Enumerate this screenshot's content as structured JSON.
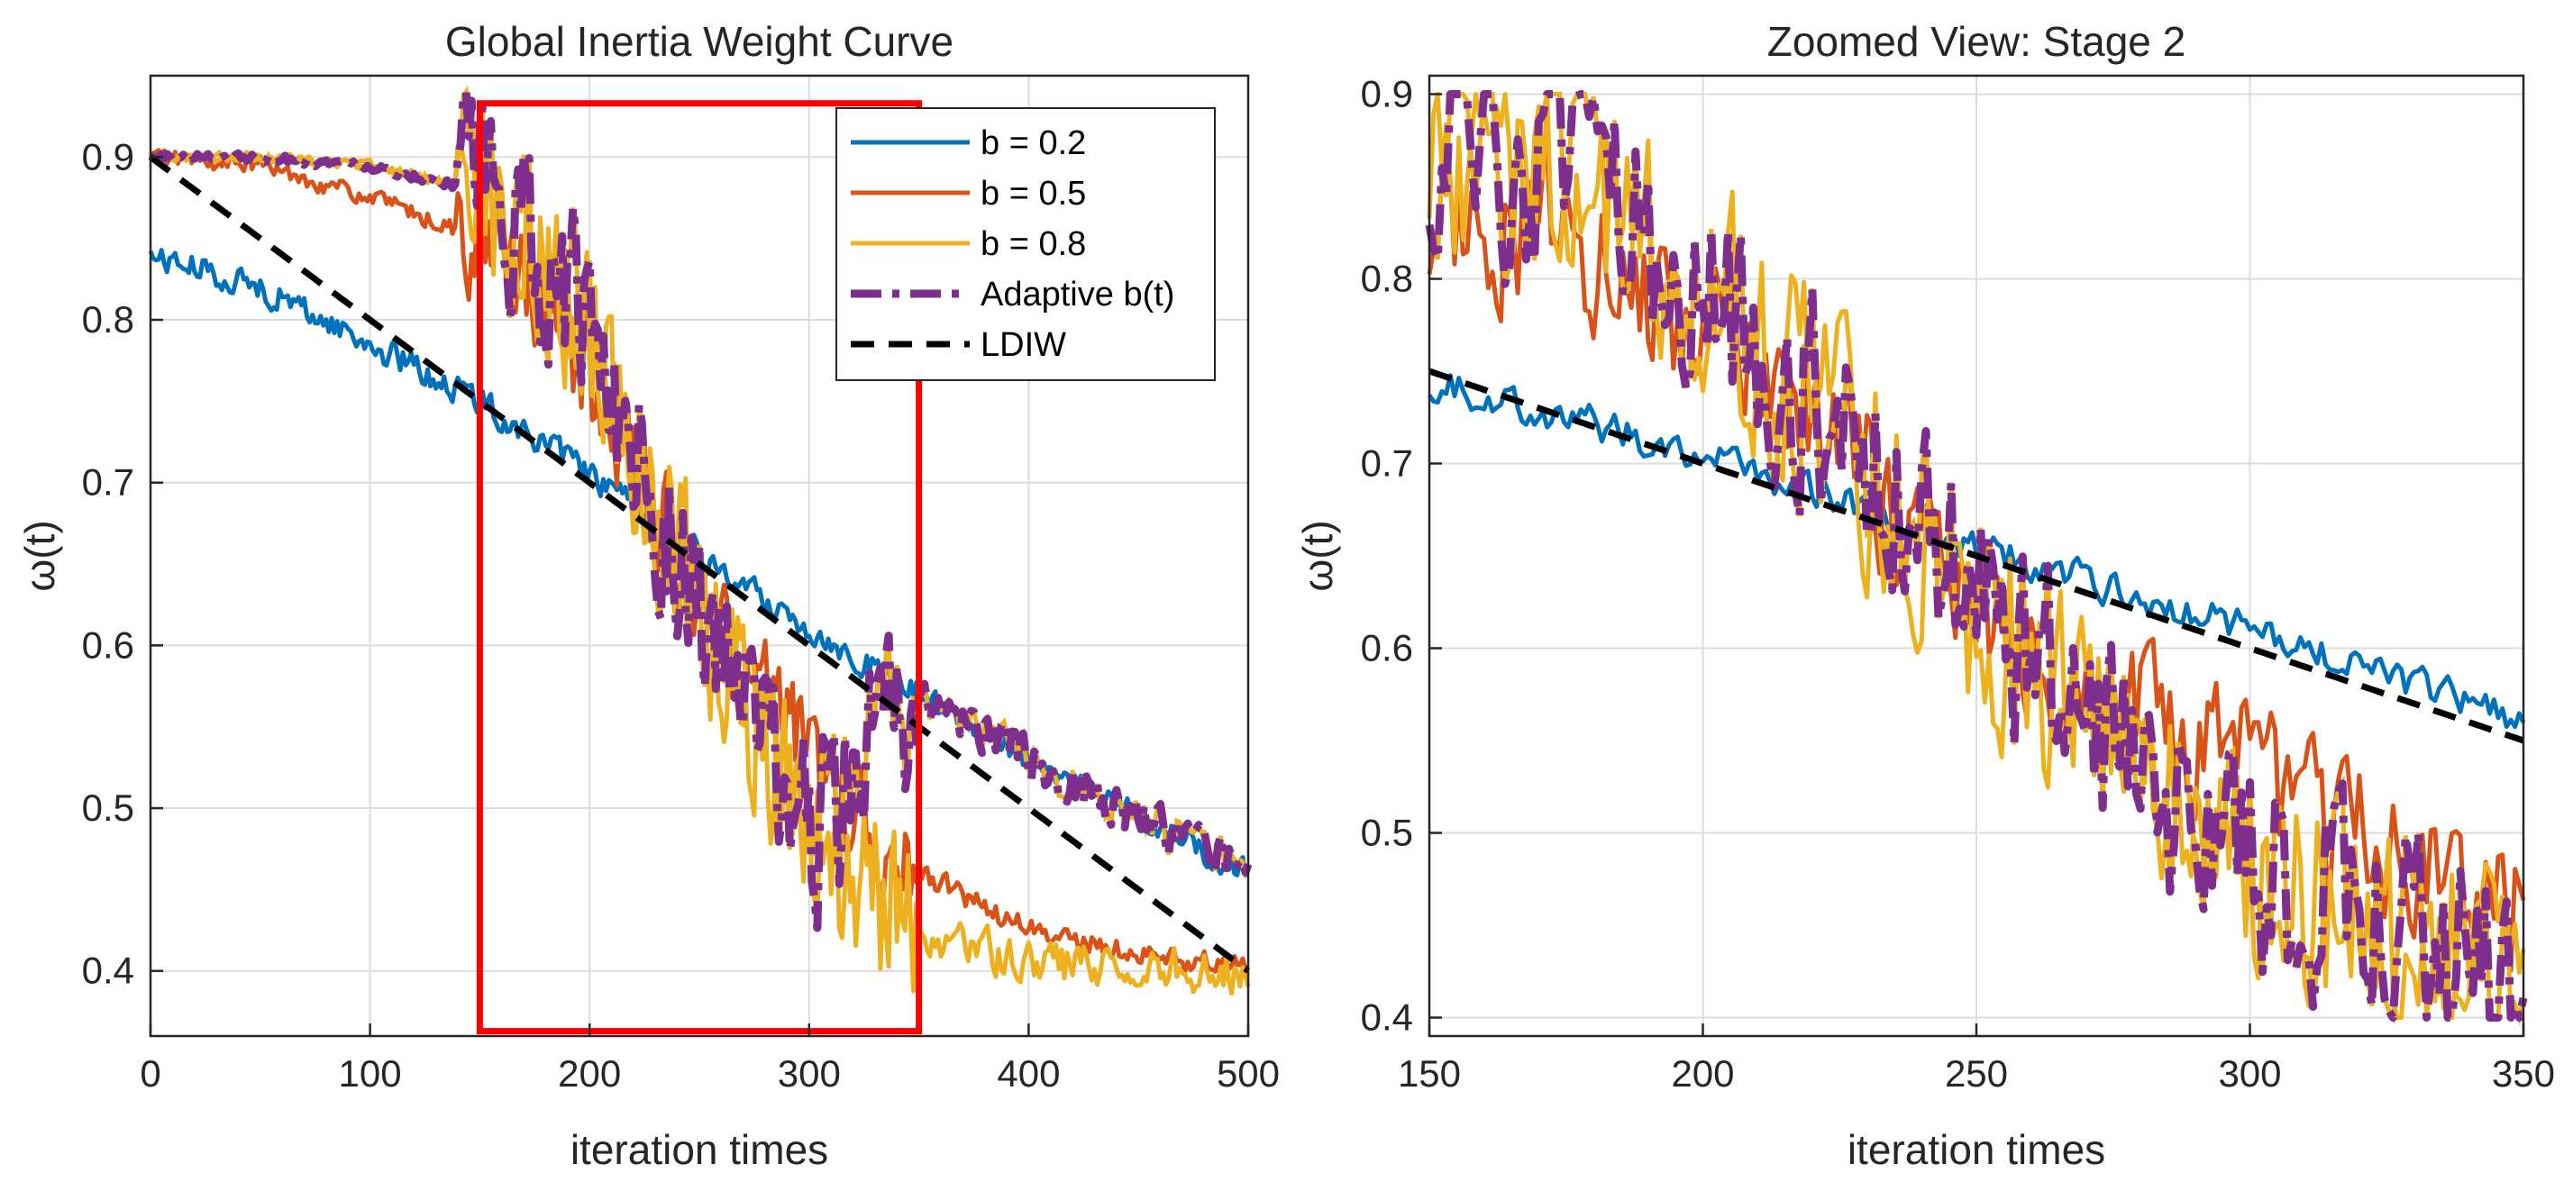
{
  "chart_data": [
    {
      "type": "line",
      "title": "Global Inertia Weight Curve",
      "xlabel": "iteration times",
      "ylabel": "ω(t)",
      "xlim": [
        0,
        500
      ],
      "ylim": [
        0.36,
        0.95
      ],
      "xticks": [
        0,
        100,
        200,
        300,
        400,
        500
      ],
      "yticks": [
        0.4,
        0.5,
        0.6,
        0.7,
        0.8,
        0.9
      ],
      "grid": true,
      "legend_position": "top-right",
      "highlight_box": {
        "x": [
          150,
          350
        ],
        "y": [
          0.363,
          0.933
        ],
        "color": "#ff0000"
      },
      "series": [
        {
          "name": "b = 0.2",
          "color": "#0072bd",
          "style": "solid",
          "points": [
            [
              0,
              0.84
            ],
            [
              50,
              0.82
            ],
            [
              100,
              0.785
            ],
            [
              150,
              0.75
            ],
            [
              200,
              0.705
            ],
            [
              250,
              0.655
            ],
            [
              300,
              0.61
            ],
            [
              350,
              0.57
            ],
            [
              400,
              0.53
            ],
            [
              450,
              0.495
            ],
            [
              500,
              0.46
            ]
          ]
        },
        {
          "name": "b = 0.5",
          "color": "#d95319",
          "style": "solid",
          "points": [
            [
              0,
              0.9
            ],
            [
              50,
              0.895
            ],
            [
              100,
              0.875
            ],
            [
              150,
              0.85
            ],
            [
              200,
              0.77
            ],
            [
              250,
              0.62
            ],
            [
              300,
              0.53
            ],
            [
              350,
              0.46
            ],
            [
              400,
              0.425
            ],
            [
              450,
              0.41
            ],
            [
              500,
              0.403
            ]
          ]
        },
        {
          "name": "b = 0.8",
          "color": "#edb120",
          "style": "solid",
          "points": [
            [
              0,
              0.9
            ],
            [
              50,
              0.9
            ],
            [
              100,
              0.895
            ],
            [
              150,
              0.88
            ],
            [
              200,
              0.8
            ],
            [
              250,
              0.62
            ],
            [
              300,
              0.48
            ],
            [
              350,
              0.425
            ],
            [
              400,
              0.405
            ],
            [
              450,
              0.401
            ],
            [
              500,
              0.4
            ]
          ]
        },
        {
          "name": "Adaptive b(t)",
          "color": "#7e2f8e",
          "style": "dashdot",
          "points": [
            [
              0,
              0.9
            ],
            [
              50,
              0.9
            ],
            [
              100,
              0.895
            ],
            [
              150,
              0.88
            ],
            [
              200,
              0.8
            ],
            [
              250,
              0.62
            ],
            [
              300,
              0.48
            ],
            [
              350,
              0.57
            ],
            [
              400,
              0.53
            ],
            [
              450,
              0.495
            ],
            [
              500,
              0.46
            ]
          ]
        },
        {
          "name": "LDIW",
          "color": "#000000",
          "style": "dashed",
          "points": [
            [
              0,
              0.9
            ],
            [
              500,
              0.4
            ]
          ]
        }
      ]
    },
    {
      "type": "line",
      "title": "Zoomed View: Stage 2",
      "xlabel": "iteration times",
      "ylabel": "ω(t)",
      "xlim": [
        150,
        350
      ],
      "ylim": [
        0.39,
        0.91
      ],
      "xticks": [
        150,
        200,
        250,
        300,
        350
      ],
      "yticks": [
        0.4,
        0.5,
        0.6,
        0.7,
        0.8,
        0.9
      ],
      "grid": true,
      "series": [
        {
          "name": "b = 0.2",
          "color": "#0072bd",
          "style": "solid",
          "points": [
            [
              150,
              0.745
            ],
            [
              175,
              0.725
            ],
            [
              200,
              0.705
            ],
            [
              225,
              0.68
            ],
            [
              250,
              0.655
            ],
            [
              275,
              0.632
            ],
            [
              300,
              0.61
            ],
            [
              325,
              0.585
            ],
            [
              350,
              0.56
            ]
          ]
        },
        {
          "name": "b = 0.5",
          "color": "#d95319",
          "style": "solid",
          "points": [
            [
              150,
              0.835
            ],
            [
              175,
              0.82
            ],
            [
              200,
              0.77
            ],
            [
              225,
              0.71
            ],
            [
              250,
              0.62
            ],
            [
              275,
              0.57
            ],
            [
              300,
              0.53
            ],
            [
              325,
              0.49
            ],
            [
              350,
              0.455
            ]
          ]
        },
        {
          "name": "b = 0.8",
          "color": "#edb120",
          "style": "solid",
          "points": [
            [
              150,
              0.88
            ],
            [
              175,
              0.855
            ],
            [
              200,
              0.8
            ],
            [
              225,
              0.72
            ],
            [
              250,
              0.62
            ],
            [
              275,
              0.55
            ],
            [
              300,
              0.48
            ],
            [
              325,
              0.445
            ],
            [
              350,
              0.425
            ]
          ]
        },
        {
          "name": "Adaptive b(t)",
          "color": "#7e2f8e",
          "style": "dashdot",
          "points": [
            [
              150,
              0.875
            ],
            [
              175,
              0.85
            ],
            [
              200,
              0.8
            ],
            [
              225,
              0.72
            ],
            [
              250,
              0.62
            ],
            [
              275,
              0.55
            ],
            [
              300,
              0.48
            ],
            [
              325,
              0.445
            ],
            [
              350,
              0.43
            ]
          ]
        },
        {
          "name": "LDIW",
          "color": "#000000",
          "style": "dashed",
          "points": [
            [
              150,
              0.75
            ],
            [
              350,
              0.55
            ]
          ]
        }
      ]
    }
  ]
}
